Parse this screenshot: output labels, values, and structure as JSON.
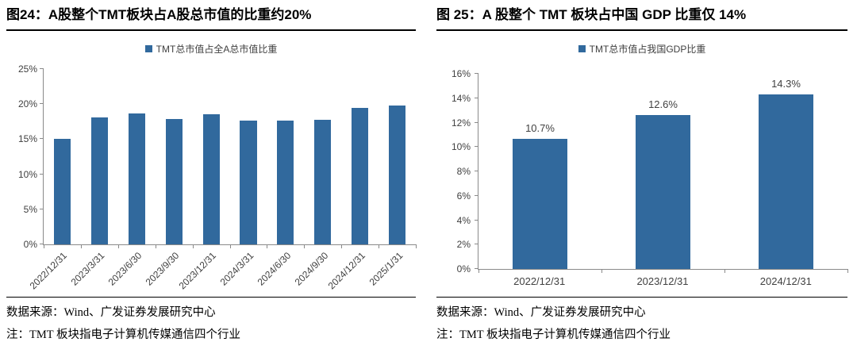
{
  "page_background": "#ffffff",
  "accent_color": "#31699D",
  "axis_color": "#8a8a8a",
  "text_color": "#404040",
  "chart_data": [
    {
      "type": "bar",
      "title": "图24：A股整个TMT板块占A股总市值的比重约20%",
      "legend": "TMT总市值占全A总市值比重",
      "categories": [
        "2022/12/31",
        "2023/3/31",
        "2023/6/30",
        "2023/9/30",
        "2023/12/31",
        "2024/3/31",
        "2024/6/30",
        "2024/9/30",
        "2024/12/31",
        "2025/1/31"
      ],
      "values": [
        15.0,
        18.1,
        18.7,
        17.9,
        18.6,
        17.7,
        17.6,
        17.8,
        19.5,
        19.8
      ],
      "unit": "%",
      "ylim": [
        0,
        25
      ],
      "ytick_values": [
        0,
        5,
        10,
        15,
        20,
        25
      ],
      "ytick_labels": [
        "0%",
        "5%",
        "10%",
        "15%",
        "20%",
        "25%"
      ],
      "bar_color": "#31699D",
      "data_labels": false,
      "data_label_texts": [],
      "x_label_rotation": -45,
      "grid": false,
      "legend_position": "top-center",
      "source": "数据来源：Wind、广发证券发展研究中心",
      "note": "注：TMT 板块指电子计算机传媒通信四个行业"
    },
    {
      "type": "bar",
      "title": "图 25：A 股整个 TMT 板块占中国 GDP 比重仅 14%",
      "legend": "TMT总市值占我国GDP比重",
      "categories": [
        "2022/12/31",
        "2023/12/31",
        "2024/12/31"
      ],
      "values": [
        10.7,
        12.6,
        14.3
      ],
      "unit": "%",
      "ylim": [
        0,
        16
      ],
      "ytick_values": [
        0,
        2,
        4,
        6,
        8,
        10,
        12,
        14,
        16
      ],
      "ytick_labels": [
        "0%",
        "2%",
        "4%",
        "6%",
        "8%",
        "10%",
        "12%",
        "14%",
        "16%"
      ],
      "bar_color": "#31699D",
      "data_labels": true,
      "data_label_texts": [
        "10.7%",
        "12.6%",
        "14.3%"
      ],
      "x_label_rotation": 0,
      "grid": false,
      "legend_position": "top-center",
      "source": "数据来源：Wind、广发证券发展研究中心",
      "note": "注：TMT 板块指电子计算机传媒通信四个行业"
    }
  ]
}
